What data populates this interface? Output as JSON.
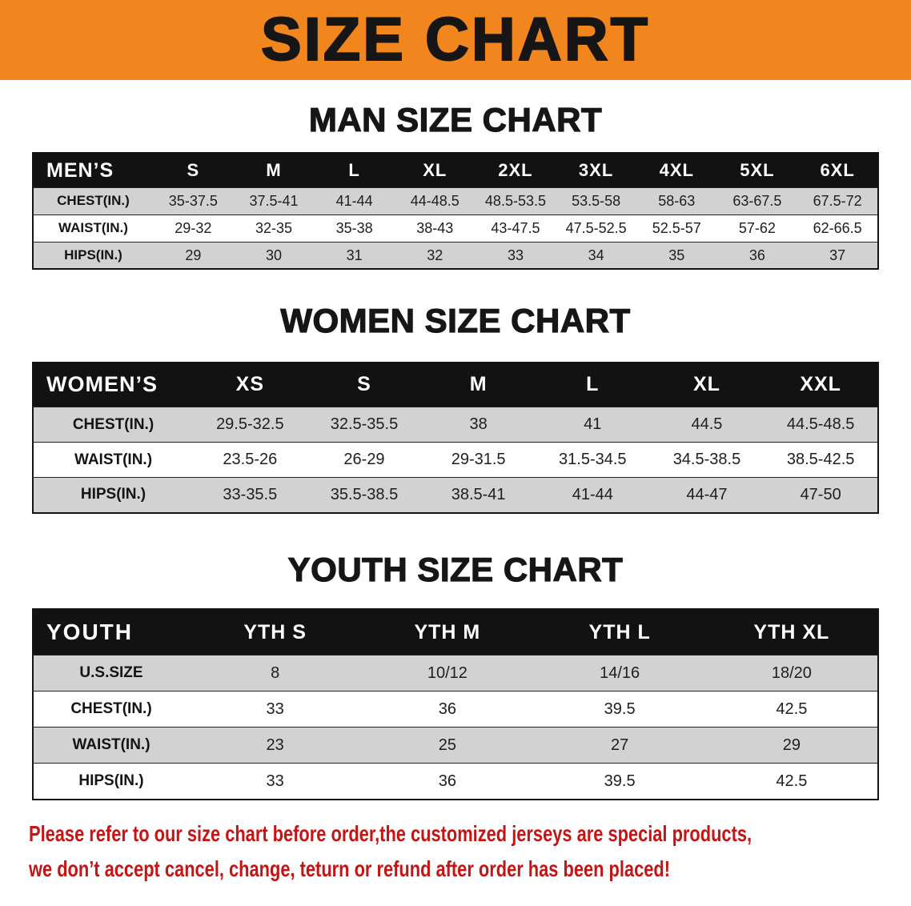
{
  "banner": {
    "title": "SIZE CHART"
  },
  "theme": {
    "banner_orange": "#f1861f",
    "header_black": "#121212",
    "stripe_gray": "#d2d2d2",
    "notice_red": "#c41414",
    "text_black": "#1a1a1a"
  },
  "sections": [
    {
      "heading": "MAN SIZE CHART",
      "table": {
        "header": [
          "MEN’S",
          "S",
          "M",
          "L",
          "XL",
          "2XL",
          "3XL",
          "4XL",
          "5XL",
          "6XL"
        ],
        "rows": [
          [
            "CHEST(IN.)",
            "35-37.5",
            "37.5-41",
            "41-44",
            "44-48.5",
            "48.5-53.5",
            "53.5-58",
            "58-63",
            "63-67.5",
            "67.5-72"
          ],
          [
            "WAIST(IN.)",
            "29-32",
            "32-35",
            "35-38",
            "38-43",
            "43-47.5",
            "47.5-52.5",
            "52.5-57",
            "57-62",
            "62-66.5"
          ],
          [
            "HIPS(IN.)",
            "29",
            "30",
            "31",
            "32",
            "33",
            "34",
            "35",
            "36",
            "37"
          ]
        ]
      }
    },
    {
      "heading": "WOMEN SIZE CHART",
      "table": {
        "header": [
          "WOMEN’S",
          "XS",
          "S",
          "M",
          "L",
          "XL",
          "XXL"
        ],
        "rows": [
          [
            "CHEST(IN.)",
            "29.5-32.5",
            "32.5-35.5",
            "38",
            "41",
            "44.5",
            "44.5-48.5"
          ],
          [
            "WAIST(IN.)",
            "23.5-26",
            "26-29",
            "29-31.5",
            "31.5-34.5",
            "34.5-38.5",
            "38.5-42.5"
          ],
          [
            "HIPS(IN.)",
            "33-35.5",
            "35.5-38.5",
            "38.5-41",
            "41-44",
            "44-47",
            "47-50"
          ]
        ]
      }
    },
    {
      "heading": "YOUTH SIZE CHART",
      "table": {
        "header": [
          "YOUTH",
          "YTH S",
          "YTH M",
          "YTH L",
          "YTH XL"
        ],
        "rows": [
          [
            "U.S.SIZE",
            "8",
            "10/12",
            "14/16",
            "18/20"
          ],
          [
            "CHEST(IN.)",
            "33",
            "36",
            "39.5",
            "42.5"
          ],
          [
            "WAIST(IN.)",
            "23",
            "25",
            "27",
            "29"
          ],
          [
            "HIPS(IN.)",
            "33",
            "36",
            "39.5",
            "42.5"
          ]
        ]
      }
    }
  ],
  "notice": {
    "line1": "Please refer to our size chart before order,the customized jerseys are special products,",
    "line2": "we don’t accept cancel, change, teturn or refund after order has been placed!"
  }
}
